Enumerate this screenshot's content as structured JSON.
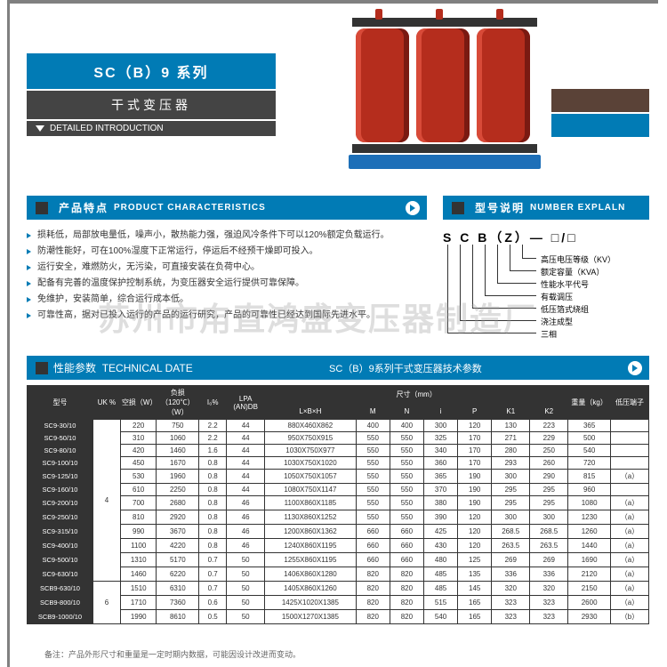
{
  "series": {
    "title": "SC（B）9 系列",
    "subtitle": "干式变压器",
    "detail_label": "DETAILED INTRODUCTION"
  },
  "characteristics": {
    "header_cn": "产品特点",
    "header_en": "PRODUCT CHARACTERISTICS",
    "items": [
      "损耗低，局部放电量低，噪声小，散热能力强，强迫风冷条件下可以120%额定负载运行。",
      "防潮性能好，可在100%湿度下正常运行，停运后不经预干燥即可投入。",
      "运行安全，难燃防火，无污染，可直接安装在负荷中心。",
      "配备有完善的温度保护控制系统，为变压器安全运行提供可靠保障。",
      "免维护，安装简单，综合运行成本低。",
      "可靠性高，据对已投入运行的产品的运行研究，产品的可靠性已经达到国际先进水平。"
    ]
  },
  "model": {
    "header_cn": "型号说明",
    "header_en": "NUMBER EXPLALN",
    "code": "S C B（Z）— □/□",
    "labels": [
      "高压电压等级（KV）",
      "额定容量（KVA）",
      "性能水平代号",
      "有载调压",
      "低压箔式绕组",
      "浇注成型",
      "三相"
    ]
  },
  "tech": {
    "header_cn": "性能参数",
    "header_en": "TECHNICAL DATE",
    "sub_title": "SC（B）9系列干式变压器技术参数"
  },
  "watermark": "苏州市甪直鸿盛变压器制造厂",
  "footnote": "备注：产品外形尺寸和重量是一定时期内数据，可能因设计改进而变动。",
  "table": {
    "group_header_size": "尺寸（mm）",
    "columns": [
      "型号",
      "UK %",
      "空损（W）",
      "负损（120℃）（W）",
      "I₀%",
      "LPA (AN)DB",
      "L×B×H",
      "M",
      "N",
      "i",
      "P",
      "K1",
      "K2",
      "重量（kg）",
      "低压端子"
    ],
    "size_sub": [
      "L×B×H",
      "M",
      "N",
      "i",
      "P",
      "K1",
      "K2"
    ],
    "rows": [
      [
        "SC9-30/10",
        "4",
        "220",
        "750",
        "2.2",
        "44",
        "880X460X862",
        "400",
        "400",
        "300",
        "120",
        "130",
        "223",
        "365",
        ""
      ],
      [
        "SC9-50/10",
        "4",
        "310",
        "1060",
        "2.2",
        "44",
        "950X750X915",
        "550",
        "550",
        "325",
        "170",
        "271",
        "229",
        "500",
        ""
      ],
      [
        "SC9-80/10",
        "4",
        "420",
        "1460",
        "1.6",
        "44",
        "1030X750X977",
        "550",
        "550",
        "340",
        "170",
        "280",
        "250",
        "540",
        ""
      ],
      [
        "SC9-100/10",
        "4",
        "450",
        "1670",
        "0.8",
        "44",
        "1030X750X1020",
        "550",
        "550",
        "360",
        "170",
        "293",
        "260",
        "720",
        ""
      ],
      [
        "SC9-125/10",
        "4",
        "530",
        "1960",
        "0.8",
        "44",
        "1050X750X1057",
        "550",
        "550",
        "365",
        "190",
        "300",
        "290",
        "815",
        "（a）"
      ],
      [
        "SC9-160/10",
        "4",
        "610",
        "2250",
        "0.8",
        "44",
        "1080X750X1147",
        "550",
        "550",
        "370",
        "190",
        "295",
        "295",
        "960",
        ""
      ],
      [
        "SC9-200/10",
        "4",
        "700",
        "2680",
        "0.8",
        "46",
        "1100X860X1185",
        "550",
        "550",
        "380",
        "190",
        "295",
        "295",
        "1080",
        "（a）"
      ],
      [
        "SC9-250/10",
        "4",
        "810",
        "2920",
        "0.8",
        "46",
        "1130X860X1252",
        "550",
        "550",
        "390",
        "120",
        "300",
        "300",
        "1230",
        "（a）"
      ],
      [
        "SC9-315/10",
        "4",
        "990",
        "3670",
        "0.8",
        "46",
        "1200X860X1362",
        "660",
        "660",
        "425",
        "120",
        "268.5",
        "268.5",
        "1260",
        "（a）"
      ],
      [
        "SC9-400/10",
        "4",
        "1100",
        "4220",
        "0.8",
        "46",
        "1240X860X1195",
        "660",
        "660",
        "430",
        "120",
        "263.5",
        "263.5",
        "1440",
        "（a）"
      ],
      [
        "SC9-500/10",
        "4",
        "1310",
        "5170",
        "0.7",
        "50",
        "1255X860X1195",
        "660",
        "660",
        "480",
        "125",
        "269",
        "269",
        "1690",
        "（a）"
      ],
      [
        "SC9-630/10",
        "4",
        "1460",
        "6220",
        "0.7",
        "50",
        "1406X860X1280",
        "820",
        "820",
        "485",
        "135",
        "336",
        "336",
        "2120",
        "（a）"
      ],
      [
        "SCB9-630/10",
        "6",
        "1510",
        "6310",
        "0.7",
        "50",
        "1405X860X1260",
        "820",
        "820",
        "485",
        "145",
        "320",
        "320",
        "2150",
        "（a）"
      ],
      [
        "SCB9-800/10",
        "6",
        "1710",
        "7360",
        "0.6",
        "50",
        "1425X1020X1385",
        "820",
        "820",
        "515",
        "165",
        "323",
        "323",
        "2600",
        "（a）"
      ],
      [
        "SCB9-1000/10",
        "6",
        "1990",
        "8610",
        "0.5",
        "50",
        "1500X1270X1385",
        "820",
        "820",
        "540",
        "165",
        "323",
        "323",
        "2930",
        "（b）"
      ]
    ]
  },
  "colors": {
    "primary": "#017bb5",
    "dark": "#333333",
    "brown": "#5a4237",
    "coil": "#b52d1d",
    "base": "#1d6fb8"
  }
}
